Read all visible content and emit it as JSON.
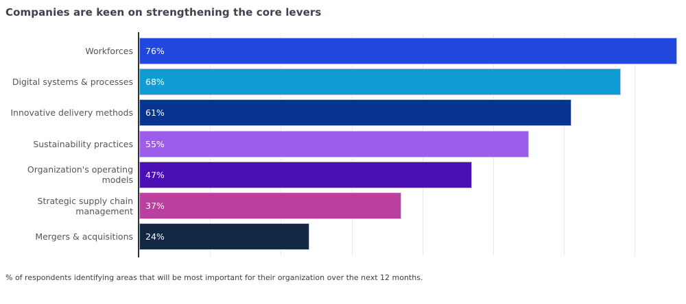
{
  "title": "Companies are keen on strengthening the core levers",
  "footnote": "% of respondents identifying areas that will be most important for their organization over the next 12 months.",
  "chart_data": {
    "type": "bar",
    "orientation": "horizontal",
    "title": "Companies are keen on strengthening the core levers",
    "categories": [
      "Workforces",
      "Digital systems & processes",
      "Innovative delivery methods",
      "Sustainability practices",
      "Organization's operating models",
      "Strategic supply chain management",
      "Mergers & acquisitions"
    ],
    "values": [
      76,
      68,
      61,
      55,
      47,
      37,
      24
    ],
    "value_label_format": "{value}%",
    "bar_colors": [
      "#2247dc",
      "#0e9cd2",
      "#063490",
      "#9d5ce9",
      "#4b10b4",
      "#bb3f9f",
      "#112742"
    ],
    "xlabel": "",
    "ylabel": "",
    "xlim": [
      0,
      77
    ],
    "gridline_interval": 10,
    "grid": true,
    "legend": false
  },
  "colors": {
    "background": "#ffffff",
    "title_text": "#3d424d",
    "category_text": "#50555e",
    "value_text": "#ffffff",
    "gridline": "#e9e9ec",
    "axis_line": "#2e3138",
    "bar_outline": "#c9d0e2"
  }
}
